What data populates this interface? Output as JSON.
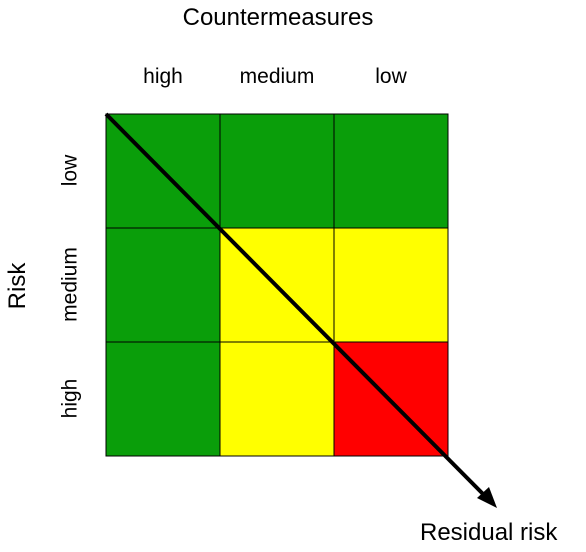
{
  "title": "Countermeasures",
  "columns": [
    "high",
    "medium",
    "low"
  ],
  "y_axis_label": "Risk",
  "rows": [
    "low",
    "medium",
    "high"
  ],
  "cells": [
    [
      "green",
      "green",
      "green"
    ],
    [
      "green",
      "yellow",
      "yellow"
    ],
    [
      "green",
      "yellow",
      "red"
    ]
  ],
  "colors": {
    "green": "#0a9e0a",
    "yellow": "#ffff00",
    "red": "#ff0000",
    "grid": "#000000",
    "arrow": "#000000"
  },
  "arrow_label": "Residual risk"
}
